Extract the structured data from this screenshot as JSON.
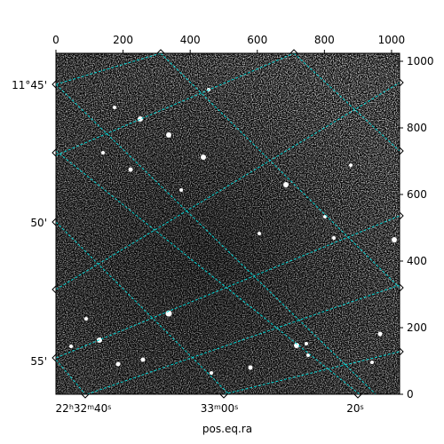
{
  "chart_data": {
    "type": "heatmap",
    "title": "",
    "xlabel": "pos.eq.ra",
    "ylabel": "",
    "colormap": "grayscale",
    "pixel_axes": {
      "x": {
        "range": [
          0,
          1024
        ],
        "ticks": [
          "0",
          "200",
          "400",
          "600",
          "800",
          "1000"
        ]
      },
      "y": {
        "range": [
          0,
          1024
        ],
        "ticks": [
          "0",
          "200",
          "400",
          "600",
          "800",
          "1000"
        ]
      }
    },
    "world_axes": {
      "ra_ticks": [
        {
          "label_main": "22",
          "sup1": "h",
          "mid": "32",
          "sup2": "m",
          "tail": "40",
          "sup3": "s"
        },
        {
          "label_main": "33",
          "sup1": "m",
          "mid": "00",
          "sup2": "s",
          "tail": "",
          "sup3": ""
        },
        {
          "label_main": "20",
          "sup1": "s",
          "mid": "",
          "sup2": "",
          "tail": "",
          "sup3": ""
        }
      ],
      "dec_ticks": [
        "11°45'",
        "50'",
        "55'"
      ]
    },
    "grid": true,
    "grid_color": "#00d2d2",
    "frame_color": "#000000"
  }
}
